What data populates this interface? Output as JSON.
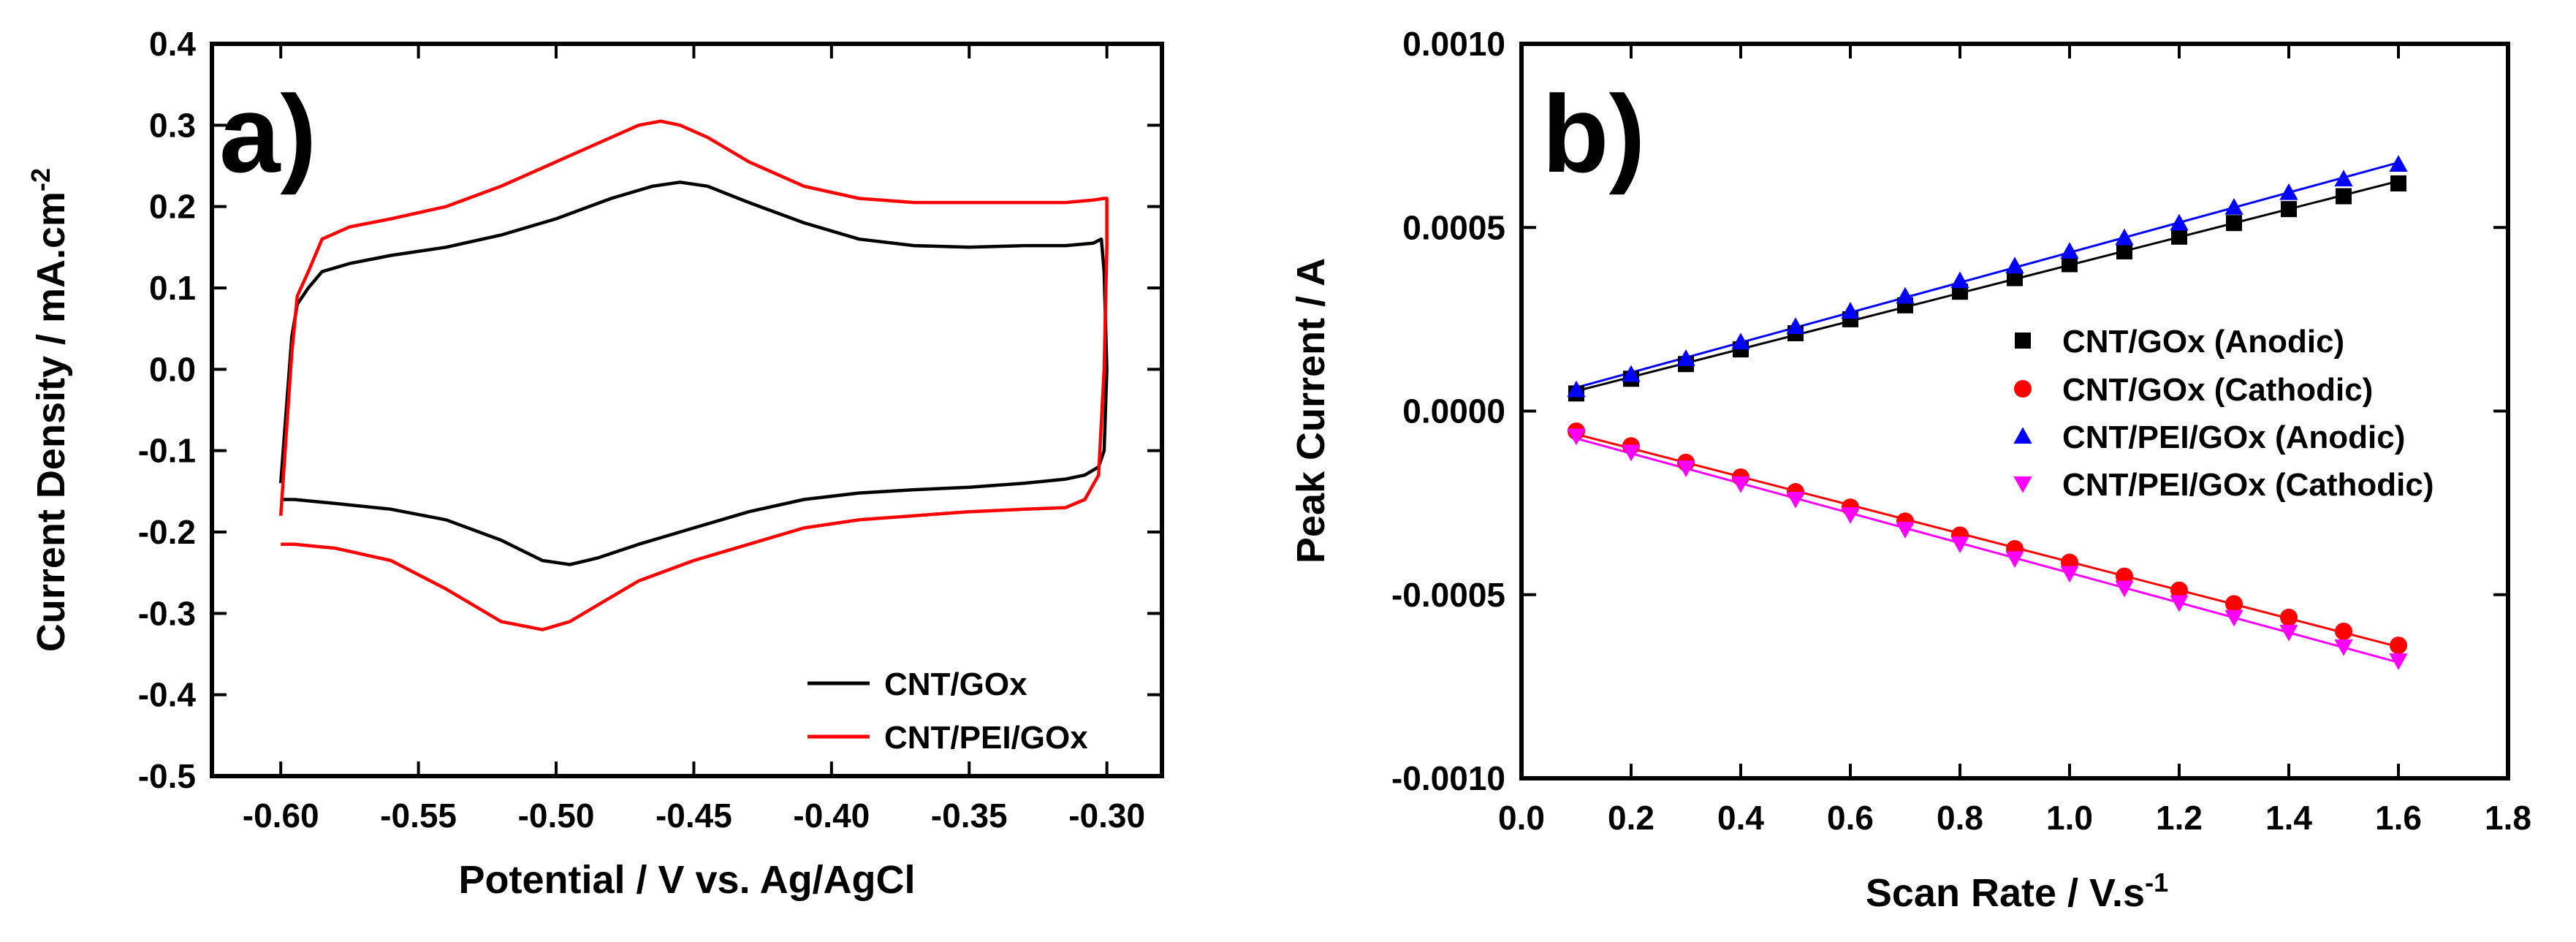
{
  "chart_data": [
    {
      "type": "line",
      "panel_label": "a)",
      "xlabel": "Potential / V vs. Ag/AgCl",
      "ylabel": "Current Density / mA.cm",
      "ylabel_superscript": "-2",
      "xlim": [
        -0.625,
        -0.28
      ],
      "ylim": [
        -0.5,
        0.4
      ],
      "xticks": [
        -0.6,
        -0.55,
        -0.5,
        -0.45,
        -0.4,
        -0.35,
        -0.3
      ],
      "xtick_labels": [
        "-0.60",
        "-0.55",
        "-0.50",
        "-0.45",
        "-0.40",
        "-0.35",
        "-0.30"
      ],
      "yticks": [
        0.4,
        0.3,
        0.2,
        0.1,
        0.0,
        -0.1,
        -0.2,
        -0.3,
        -0.4,
        -0.5
      ],
      "ytick_labels": [
        "0.4",
        "0.3",
        "0.2",
        "0.1",
        "0.0",
        "-0.1",
        "-0.2",
        "-0.3",
        "-0.4",
        "-0.5"
      ],
      "legend_position": "bottom-right",
      "series": [
        {
          "name": "CNT/GOx",
          "color": "#000000",
          "x": [
            -0.6,
            -0.598,
            -0.596,
            -0.594,
            -0.59,
            -0.585,
            -0.575,
            -0.56,
            -0.54,
            -0.52,
            -0.5,
            -0.48,
            -0.465,
            -0.455,
            -0.445,
            -0.43,
            -0.41,
            -0.39,
            -0.37,
            -0.35,
            -0.33,
            -0.315,
            -0.305,
            -0.302,
            -0.301,
            -0.3,
            -0.301,
            -0.303,
            -0.308,
            -0.315,
            -0.33,
            -0.35,
            -0.37,
            -0.39,
            -0.41,
            -0.43,
            -0.45,
            -0.47,
            -0.485,
            -0.495,
            -0.505,
            -0.52,
            -0.54,
            -0.56,
            -0.58,
            -0.595,
            -0.6
          ],
          "y": [
            -0.14,
            -0.05,
            0.04,
            0.08,
            0.1,
            0.12,
            0.13,
            0.14,
            0.15,
            0.165,
            0.185,
            0.21,
            0.225,
            0.23,
            0.225,
            0.205,
            0.18,
            0.16,
            0.152,
            0.15,
            0.152,
            0.152,
            0.155,
            0.16,
            0.12,
            0.0,
            -0.1,
            -0.12,
            -0.13,
            -0.135,
            -0.14,
            -0.145,
            -0.148,
            -0.152,
            -0.16,
            -0.175,
            -0.195,
            -0.215,
            -0.232,
            -0.24,
            -0.235,
            -0.21,
            -0.185,
            -0.172,
            -0.165,
            -0.16,
            -0.16
          ]
        },
        {
          "name": "CNT/PEI/GOx",
          "color": "#ff0000",
          "x": [
            -0.6,
            -0.598,
            -0.596,
            -0.594,
            -0.59,
            -0.585,
            -0.575,
            -0.56,
            -0.54,
            -0.52,
            -0.5,
            -0.48,
            -0.47,
            -0.462,
            -0.455,
            -0.445,
            -0.43,
            -0.41,
            -0.39,
            -0.37,
            -0.35,
            -0.33,
            -0.315,
            -0.305,
            -0.301,
            -0.3,
            -0.3,
            -0.301,
            -0.303,
            -0.308,
            -0.315,
            -0.33,
            -0.35,
            -0.37,
            -0.39,
            -0.41,
            -0.43,
            -0.45,
            -0.47,
            -0.485,
            -0.495,
            -0.505,
            -0.52,
            -0.54,
            -0.56,
            -0.58,
            -0.595,
            -0.6
          ],
          "y": [
            -0.18,
            -0.08,
            0.02,
            0.09,
            0.12,
            0.16,
            0.175,
            0.185,
            0.2,
            0.225,
            0.255,
            0.285,
            0.3,
            0.305,
            0.3,
            0.285,
            0.255,
            0.225,
            0.21,
            0.205,
            0.205,
            0.205,
            0.205,
            0.208,
            0.21,
            0.21,
            0.15,
            0.0,
            -0.13,
            -0.16,
            -0.17,
            -0.172,
            -0.175,
            -0.18,
            -0.185,
            -0.195,
            -0.215,
            -0.235,
            -0.26,
            -0.29,
            -0.31,
            -0.32,
            -0.31,
            -0.27,
            -0.235,
            -0.22,
            -0.215,
            -0.215
          ]
        }
      ]
    },
    {
      "type": "scatter",
      "panel_label": "b)",
      "xlabel": "Scan Rate / V.s",
      "xlabel_superscript": "-1",
      "ylabel": "Peak Current / A",
      "xlim": [
        0.0,
        1.8
      ],
      "ylim": [
        -0.001,
        0.001
      ],
      "xticks": [
        0.0,
        0.2,
        0.4,
        0.6,
        0.8,
        1.0,
        1.2,
        1.4,
        1.6,
        1.8
      ],
      "xtick_labels": [
        "0.0",
        "0.2",
        "0.4",
        "0.6",
        "0.8",
        "1.0",
        "1.2",
        "1.4",
        "1.6",
        "1.8"
      ],
      "yticks": [
        0.001,
        0.0005,
        0.0,
        -0.0005,
        -0.001
      ],
      "ytick_labels": [
        "0.0010",
        "0.0005",
        "0.0000",
        "-0.0005",
        "-0.0010"
      ],
      "legend_position": "center-right",
      "linear_fit": true,
      "x": [
        0.1,
        0.2,
        0.3,
        0.4,
        0.5,
        0.6,
        0.7,
        0.8,
        0.9,
        1.0,
        1.1,
        1.2,
        1.3,
        1.4,
        1.5,
        1.6
      ],
      "series": [
        {
          "name": "CNT/GOx (Anodic)",
          "marker": "square",
          "color": "#000000",
          "values": [
            4.8e-05,
            8.8e-05,
            0.000128,
            0.000168,
            0.000212,
            0.00025,
            0.000288,
            0.000325,
            0.000362,
            0.0004,
            0.000435,
            0.000475,
            0.000512,
            0.00055,
            0.000585,
            0.00062
          ]
        },
        {
          "name": "CNT/GOx (Cathodic)",
          "marker": "circle",
          "color": "#ff0000",
          "values": [
            -5.5e-05,
            -9.5e-05,
            -0.00014,
            -0.00018,
            -0.00022,
            -0.000262,
            -0.0003,
            -0.000338,
            -0.000375,
            -0.000412,
            -0.00045,
            -0.000488,
            -0.000525,
            -0.000562,
            -0.0006,
            -0.000638
          ]
        },
        {
          "name": "CNT/PEI/GOx (Anodic)",
          "marker": "triangle-up",
          "color": "#0000ff",
          "values": [
            5.8e-05,
            0.0001,
            0.000143,
            0.000188,
            0.00023,
            0.000272,
            0.000313,
            0.000355,
            0.000395,
            0.000435,
            0.000472,
            0.000512,
            0.000555,
            0.000595,
            0.000632,
            0.000672
          ]
        },
        {
          "name": "CNT/PEI/GOx (Cathodic)",
          "marker": "triangle-down",
          "color": "#ff00ff",
          "values": [
            -6.8e-05,
            -0.000112,
            -0.000155,
            -0.000198,
            -0.00024,
            -0.000282,
            -0.000322,
            -0.000362,
            -0.000402,
            -0.000442,
            -0.000482,
            -0.000522,
            -0.000562,
            -0.000602,
            -0.000642,
            -0.00068
          ]
        }
      ]
    }
  ]
}
